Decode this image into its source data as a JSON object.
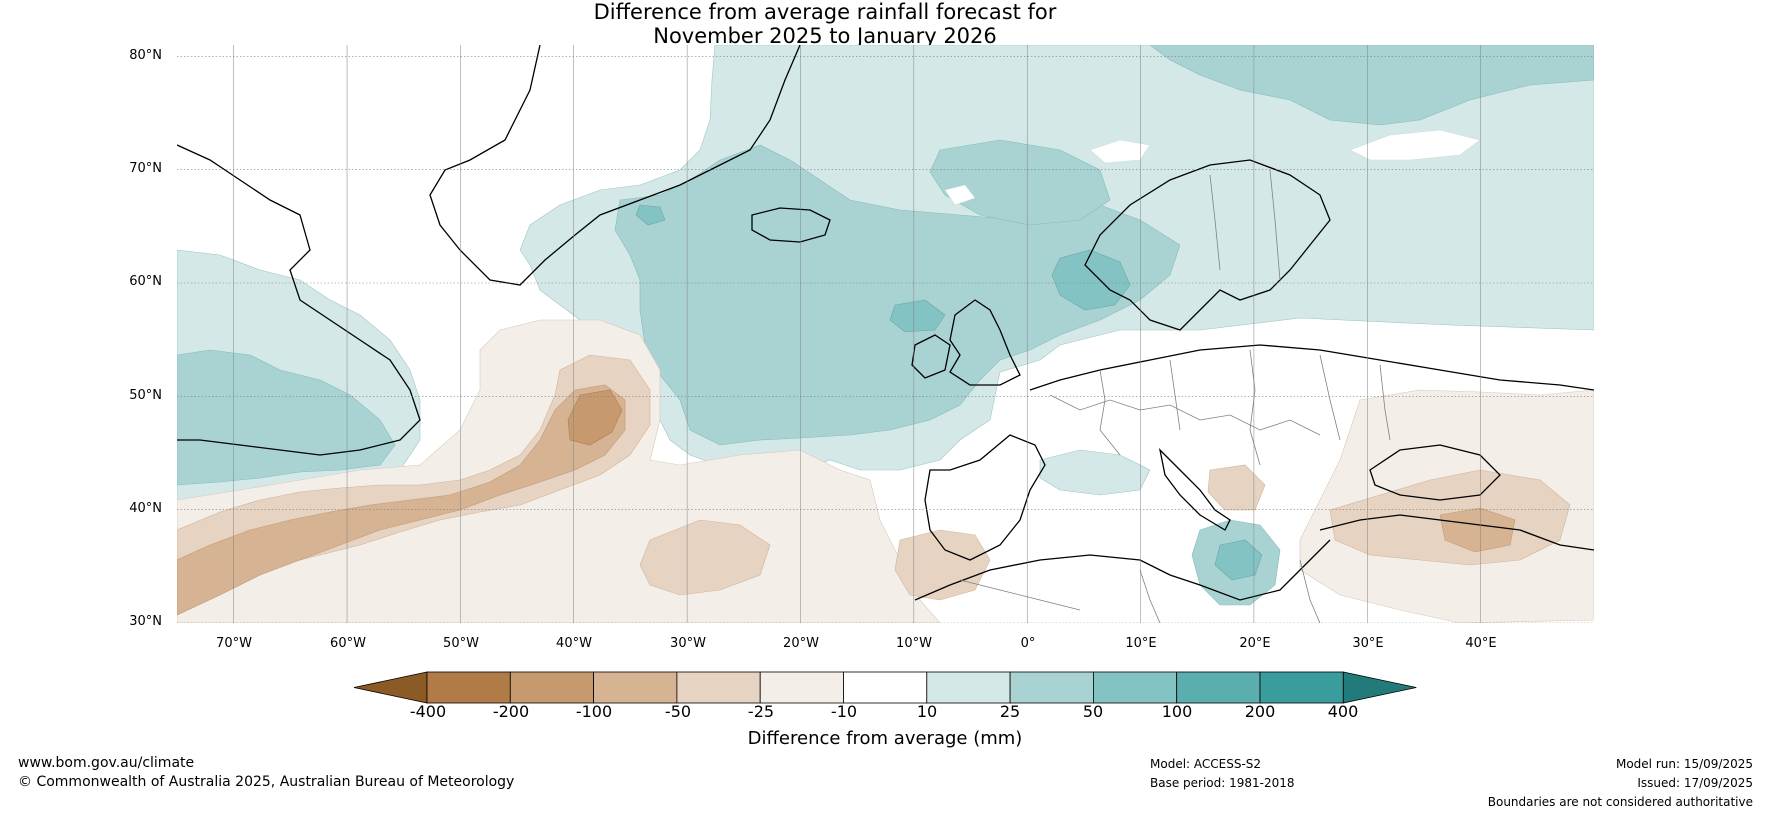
{
  "title": {
    "line1": "Difference from average rainfall forecast for",
    "line2": "November 2025 to January 2026"
  },
  "map": {
    "lat_labels": [
      "80°N",
      "70°N",
      "60°N",
      "50°N",
      "40°N",
      "30°N"
    ],
    "lon_labels": [
      "70°W",
      "60°W",
      "50°W",
      "40°W",
      "30°W",
      "20°W",
      "10°W",
      "0°",
      "10°E",
      "20°E",
      "30°E",
      "40°E"
    ],
    "lat_range": [
      30,
      81
    ],
    "lon_range": [
      -75,
      50
    ]
  },
  "colorbar": {
    "title": "Difference from average (mm)",
    "ticks": [
      "-400",
      "-200",
      "-100",
      "-50",
      "-25",
      "-10",
      "10",
      "25",
      "50",
      "100",
      "200",
      "400"
    ],
    "colors": [
      "#8c5a24",
      "#b07b46",
      "#c69a6e",
      "#d6b392",
      "#e7d3c2",
      "#f3eee8",
      "#ffffff",
      "#d4e8e8",
      "#a9d3d3",
      "#84c3c3",
      "#5aaeae",
      "#3a9c9c",
      "#237a7a"
    ]
  },
  "footer": {
    "website": "www.bom.gov.au/climate",
    "copyright": "© Commonwealth of Australia 2025, Australian Bureau of Meteorology",
    "model": "Model: ACCESS-S2",
    "base_period": "Base period: 1981-2018",
    "model_run": "Model run: 15/09/2025",
    "issued": "Issued: 17/09/2025",
    "disclaimer": "Boundaries are not considered authoritative"
  }
}
